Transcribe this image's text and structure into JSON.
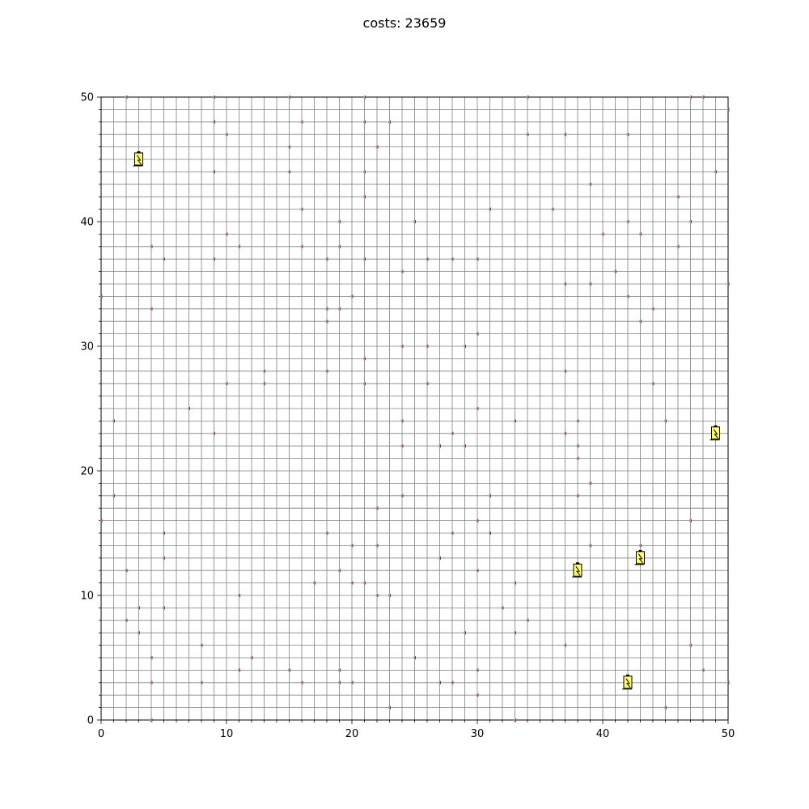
{
  "chart_data": {
    "type": "scatter",
    "title": "costs: 23659",
    "xlabel": "",
    "ylabel": "",
    "xlim": [
      0,
      50
    ],
    "ylim": [
      0,
      50
    ],
    "grid": true,
    "grid_step": 1,
    "x_ticks": [
      0,
      10,
      20,
      30,
      40,
      50
    ],
    "y_ticks": [
      0,
      10,
      20,
      30,
      40,
      50
    ],
    "colors": {
      "grid": "#808080",
      "node": "#d87fa2",
      "battery_fill": "#ffff66",
      "battery_outline": "#000000"
    },
    "series": [
      {
        "marker": "dot",
        "points": [
          [
            2,
            50
          ],
          [
            9,
            50
          ],
          [
            15,
            50
          ],
          [
            21,
            50
          ],
          [
            34,
            50
          ],
          [
            47,
            50
          ],
          [
            48,
            50
          ],
          [
            9,
            48
          ],
          [
            16,
            48
          ],
          [
            21,
            48
          ],
          [
            23,
            48
          ],
          [
            50,
            49
          ],
          [
            10,
            47
          ],
          [
            34,
            47
          ],
          [
            37,
            47
          ],
          [
            42,
            47
          ],
          [
            15,
            46
          ],
          [
            22,
            46
          ],
          [
            9,
            44
          ],
          [
            15,
            44
          ],
          [
            21,
            44
          ],
          [
            49,
            44
          ],
          [
            39,
            43
          ],
          [
            21,
            42
          ],
          [
            46,
            42
          ],
          [
            16,
            41
          ],
          [
            31,
            41
          ],
          [
            36,
            41
          ],
          [
            19,
            40
          ],
          [
            25,
            40
          ],
          [
            42,
            40
          ],
          [
            47,
            40
          ],
          [
            10,
            39
          ],
          [
            40,
            39
          ],
          [
            43,
            39
          ],
          [
            4,
            38
          ],
          [
            11,
            38
          ],
          [
            16,
            38
          ],
          [
            19,
            38
          ],
          [
            46,
            38
          ],
          [
            5,
            37
          ],
          [
            9,
            37
          ],
          [
            18,
            37
          ],
          [
            21,
            37
          ],
          [
            26,
            37
          ],
          [
            28,
            37
          ],
          [
            30,
            37
          ],
          [
            24,
            36
          ],
          [
            41,
            36
          ],
          [
            37,
            35
          ],
          [
            39,
            35
          ],
          [
            50,
            35
          ],
          [
            0,
            34
          ],
          [
            20,
            34
          ],
          [
            42,
            34
          ],
          [
            4,
            33
          ],
          [
            18,
            33
          ],
          [
            19,
            33
          ],
          [
            44,
            33
          ],
          [
            18,
            32
          ],
          [
            43,
            32
          ],
          [
            30,
            31
          ],
          [
            24,
            30
          ],
          [
            26,
            30
          ],
          [
            29,
            30
          ],
          [
            21,
            29
          ],
          [
            13,
            28
          ],
          [
            18,
            28
          ],
          [
            37,
            28
          ],
          [
            10,
            27
          ],
          [
            13,
            27
          ],
          [
            21,
            27
          ],
          [
            26,
            27
          ],
          [
            44,
            27
          ],
          [
            7,
            25
          ],
          [
            30,
            25
          ],
          [
            1,
            24
          ],
          [
            24,
            24
          ],
          [
            33,
            24
          ],
          [
            38,
            24
          ],
          [
            45,
            24
          ],
          [
            9,
            23
          ],
          [
            28,
            23
          ],
          [
            37,
            23
          ],
          [
            24,
            22
          ],
          [
            27,
            22
          ],
          [
            29,
            22
          ],
          [
            38,
            22
          ],
          [
            38,
            21
          ],
          [
            39,
            19
          ],
          [
            1,
            18
          ],
          [
            24,
            18
          ],
          [
            31,
            18
          ],
          [
            38,
            18
          ],
          [
            22,
            17
          ],
          [
            0,
            16
          ],
          [
            30,
            16
          ],
          [
            47,
            16
          ],
          [
            5,
            15
          ],
          [
            18,
            15
          ],
          [
            28,
            15
          ],
          [
            31,
            15
          ],
          [
            20,
            14
          ],
          [
            22,
            14
          ],
          [
            39,
            14
          ],
          [
            43,
            14
          ],
          [
            5,
            13
          ],
          [
            27,
            13
          ],
          [
            2,
            12
          ],
          [
            19,
            12
          ],
          [
            30,
            12
          ],
          [
            17,
            11
          ],
          [
            20,
            11
          ],
          [
            21,
            11
          ],
          [
            33,
            11
          ],
          [
            11,
            10
          ],
          [
            22,
            10
          ],
          [
            23,
            10
          ],
          [
            3,
            9
          ],
          [
            5,
            9
          ],
          [
            32,
            9
          ],
          [
            2,
            8
          ],
          [
            34,
            8
          ],
          [
            3,
            7
          ],
          [
            29,
            7
          ],
          [
            33,
            7
          ],
          [
            8,
            6
          ],
          [
            37,
            6
          ],
          [
            47,
            6
          ],
          [
            4,
            5
          ],
          [
            12,
            5
          ],
          [
            25,
            5
          ],
          [
            11,
            4
          ],
          [
            15,
            4
          ],
          [
            19,
            4
          ],
          [
            30,
            4
          ],
          [
            48,
            4
          ],
          [
            4,
            3
          ],
          [
            8,
            3
          ],
          [
            16,
            3
          ],
          [
            19,
            3
          ],
          [
            20,
            3
          ],
          [
            27,
            3
          ],
          [
            28,
            3
          ],
          [
            50,
            3
          ],
          [
            30,
            2
          ],
          [
            23,
            1
          ],
          [
            45,
            1
          ],
          [
            4,
            0
          ],
          [
            33,
            0
          ]
        ]
      },
      {
        "marker": "battery-icon",
        "points": [
          [
            3,
            45
          ],
          [
            49,
            23
          ],
          [
            43,
            13
          ],
          [
            38,
            12
          ],
          [
            42,
            3
          ]
        ]
      }
    ]
  }
}
